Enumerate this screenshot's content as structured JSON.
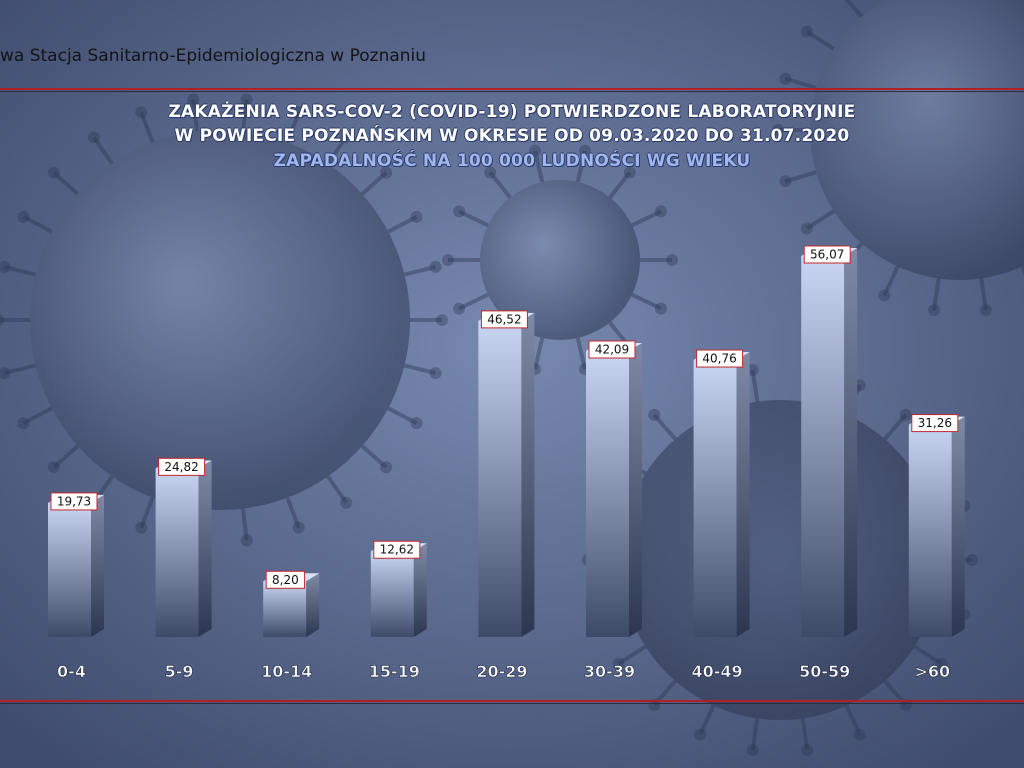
{
  "header": {
    "organization": "wa Stacja Sanitarno-Epidemiologiczna w Poznaniu"
  },
  "chart_data": {
    "type": "bar",
    "title": "ZAKAŻENIA SARS-COV-2 (COVID-19) POTWIERDZONE LABORATORYJNIE",
    "title_line2": "W POWIECIE POZNAŃSKIM W OKRESIE OD 09.03.2020 DO 31.07.2020",
    "subtitle": "ZAPADALNOŚĆ NA 100 000 LUDNOŚCI WG WIEKU",
    "categories": [
      "0-4",
      "5-9",
      "10-14",
      "15-19",
      "20-29",
      "30-39",
      "40-49",
      "50-59",
      ">60"
    ],
    "values": [
      19.73,
      24.82,
      8.2,
      12.62,
      46.52,
      42.09,
      40.76,
      56.07,
      31.26
    ],
    "value_labels": [
      "19,73",
      "24,82",
      "8,20",
      "12,62",
      "46,52",
      "42,09",
      "40,76",
      "56,07",
      "31,26"
    ],
    "xlabel": "",
    "ylabel": "",
    "ylim": [
      0,
      60
    ],
    "grid": false,
    "legend": "none",
    "colors": {
      "bar_top": "#c9d6f4",
      "bar_bottom": "#3d4a68",
      "bar_side_top": "#7e8aa6",
      "bar_side_bottom": "#2c3650",
      "label_border": "#c0272d",
      "label_bg": "#ffffff",
      "category_text": "#ffffff"
    }
  },
  "decor": {
    "accent_line": "#b02026"
  }
}
